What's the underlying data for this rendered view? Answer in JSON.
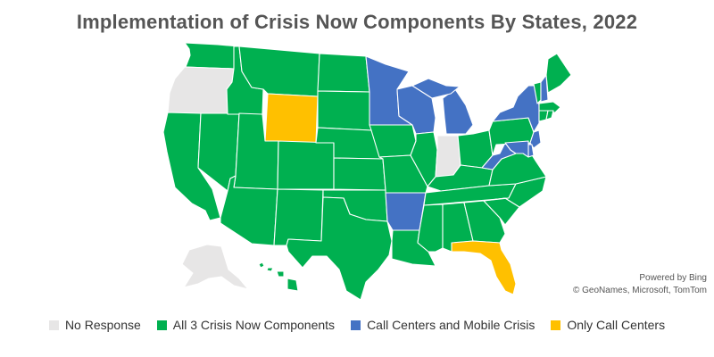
{
  "title": "Implementation of Crisis Now Components By States, 2022",
  "attribution": {
    "line1": "Powered by Bing",
    "line2": "© GeoNames, Microsoft, TomTom"
  },
  "colors": {
    "no_response": "#E7E6E6",
    "all_three": "#00B050",
    "call_mobile": "#4472C4",
    "call_only": "#FFC000"
  },
  "legend": [
    {
      "label": "No Response",
      "key": "no_response"
    },
    {
      "label": "All 3 Crisis Now Components",
      "key": "all_three"
    },
    {
      "label": "Call Centers and Mobile Crisis",
      "key": "call_mobile"
    },
    {
      "label": "Only Call Centers",
      "key": "call_only"
    }
  ],
  "states": [
    {
      "id": "WA",
      "key": "all_three"
    },
    {
      "id": "OR",
      "key": "no_response"
    },
    {
      "id": "CA",
      "key": "all_three"
    },
    {
      "id": "NV",
      "key": "all_three"
    },
    {
      "id": "ID",
      "key": "all_three"
    },
    {
      "id": "MT",
      "key": "all_three"
    },
    {
      "id": "WY",
      "key": "call_only"
    },
    {
      "id": "UT",
      "key": "all_three"
    },
    {
      "id": "AZ",
      "key": "all_three"
    },
    {
      "id": "CO",
      "key": "all_three"
    },
    {
      "id": "NM",
      "key": "all_three"
    },
    {
      "id": "ND",
      "key": "all_three"
    },
    {
      "id": "SD",
      "key": "all_three"
    },
    {
      "id": "NE",
      "key": "all_three"
    },
    {
      "id": "KS",
      "key": "all_three"
    },
    {
      "id": "OK",
      "key": "all_three"
    },
    {
      "id": "TX",
      "key": "all_three"
    },
    {
      "id": "MN",
      "key": "call_mobile"
    },
    {
      "id": "IA",
      "key": "all_three"
    },
    {
      "id": "MO",
      "key": "all_three"
    },
    {
      "id": "AR",
      "key": "call_mobile"
    },
    {
      "id": "LA",
      "key": "all_three"
    },
    {
      "id": "WI",
      "key": "call_mobile"
    },
    {
      "id": "IL",
      "key": "all_three"
    },
    {
      "id": "MI",
      "key": "call_mobile"
    },
    {
      "id": "IN",
      "key": "no_response"
    },
    {
      "id": "OH",
      "key": "all_three"
    },
    {
      "id": "KY",
      "key": "all_three"
    },
    {
      "id": "TN",
      "key": "all_three"
    },
    {
      "id": "MS",
      "key": "all_three"
    },
    {
      "id": "AL",
      "key": "all_three"
    },
    {
      "id": "GA",
      "key": "all_three"
    },
    {
      "id": "FL",
      "key": "call_only"
    },
    {
      "id": "SC",
      "key": "all_three"
    },
    {
      "id": "NC",
      "key": "all_three"
    },
    {
      "id": "VA",
      "key": "all_three"
    },
    {
      "id": "WV",
      "key": "call_mobile"
    },
    {
      "id": "PA",
      "key": "all_three"
    },
    {
      "id": "NY",
      "key": "call_mobile"
    },
    {
      "id": "VT",
      "key": "all_three"
    },
    {
      "id": "NH",
      "key": "call_mobile"
    },
    {
      "id": "ME",
      "key": "all_three"
    },
    {
      "id": "MA",
      "key": "all_three"
    },
    {
      "id": "RI",
      "key": "all_three"
    },
    {
      "id": "CT",
      "key": "all_three"
    },
    {
      "id": "NJ",
      "key": "call_mobile"
    },
    {
      "id": "DE",
      "key": "call_mobile"
    },
    {
      "id": "MD",
      "key": "call_mobile"
    },
    {
      "id": "AK",
      "key": "no_response"
    },
    {
      "id": "HI",
      "key": "all_three"
    }
  ]
}
